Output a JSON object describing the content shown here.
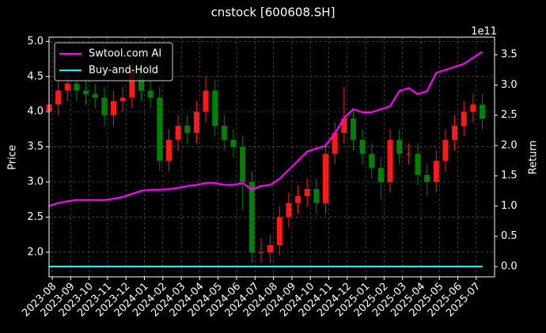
{
  "chart_data": {
    "type": "candlestick",
    "title": "cnstock [600608.SH]",
    "ylabel": "Price",
    "y2label": "Return",
    "y2_offset_label": "1e11",
    "categories": [
      null,
      null,
      null,
      null,
      null,
      null,
      null,
      null,
      null,
      null,
      null,
      null,
      null,
      null,
      null,
      null,
      null,
      null,
      null,
      null,
      null,
      null,
      null,
      null,
      null,
      null,
      null,
      null,
      null,
      null,
      null,
      null,
      null,
      null,
      null,
      null,
      null,
      null,
      null,
      null,
      null,
      null,
      null,
      null,
      null,
      null,
      null,
      null
    ],
    "open": [
      4.0,
      4.1,
      4.3,
      4.4,
      4.3,
      4.25,
      4.2,
      3.95,
      4.15,
      4.2,
      4.6,
      4.3,
      4.2,
      3.3,
      3.6,
      3.8,
      3.7,
      4.0,
      4.3,
      3.8,
      3.6,
      3.5,
      3.0,
      2.0,
      2.0,
      2.1,
      2.5,
      2.7,
      2.8,
      2.9,
      2.7,
      3.4,
      3.7,
      3.9,
      3.6,
      3.4,
      3.2,
      3.0,
      3.6,
      3.4,
      3.4,
      3.1,
      3.0,
      3.3,
      3.6,
      3.8,
      4.0,
      4.1
    ],
    "high": [
      4.25,
      4.45,
      4.55,
      4.55,
      4.45,
      4.4,
      4.35,
      4.3,
      4.35,
      4.75,
      4.75,
      4.45,
      4.35,
      3.75,
      3.95,
      3.95,
      4.15,
      4.5,
      4.45,
      3.95,
      3.75,
      3.65,
      3.15,
      2.2,
      2.25,
      2.65,
      2.85,
      2.95,
      3.05,
      3.05,
      3.55,
      3.85,
      4.35,
      4.05,
      3.75,
      3.55,
      3.35,
      3.75,
      3.75,
      3.55,
      3.55,
      3.25,
      3.45,
      3.75,
      3.95,
      4.15,
      4.25,
      4.25
    ],
    "low": [
      3.85,
      3.95,
      4.15,
      4.15,
      4.1,
      4.05,
      3.8,
      3.8,
      4.0,
      4.05,
      4.15,
      4.05,
      3.15,
      3.15,
      3.45,
      3.55,
      3.55,
      3.85,
      3.65,
      3.45,
      3.35,
      2.6,
      1.85,
      1.85,
      1.85,
      1.95,
      2.35,
      2.55,
      2.65,
      2.55,
      2.55,
      3.25,
      3.55,
      3.45,
      3.25,
      3.05,
      2.75,
      2.85,
      3.25,
      3.25,
      2.95,
      2.8,
      2.85,
      3.15,
      3.45,
      3.65,
      3.85,
      3.75
    ],
    "close": [
      4.1,
      4.3,
      4.4,
      4.3,
      4.25,
      4.2,
      3.95,
      4.15,
      4.2,
      4.6,
      4.3,
      4.2,
      3.3,
      3.6,
      3.8,
      3.7,
      4.0,
      4.3,
      3.8,
      3.6,
      3.5,
      3.0,
      2.0,
      2.0,
      2.1,
      2.5,
      2.7,
      2.8,
      2.9,
      2.7,
      3.4,
      3.7,
      3.9,
      3.6,
      3.4,
      3.2,
      3.0,
      3.6,
      3.4,
      3.4,
      3.1,
      3.0,
      3.3,
      3.6,
      3.8,
      4.0,
      4.1,
      3.9
    ],
    "up_color": "#ff1a1a",
    "down_color": "#008000",
    "series": [
      {
        "name": "Swtool.com AI",
        "color": "#ff00ff",
        "axis": "y2",
        "values": [
          1.0,
          1.05,
          1.08,
          1.1,
          1.1,
          1.1,
          1.1,
          1.12,
          1.15,
          1.2,
          1.25,
          1.27,
          1.27,
          1.28,
          1.3,
          1.33,
          1.35,
          1.38,
          1.38,
          1.35,
          1.35,
          1.38,
          1.27,
          1.33,
          1.35,
          1.45,
          1.6,
          1.75,
          1.9,
          1.95,
          2.0,
          2.2,
          2.45,
          2.6,
          2.55,
          2.55,
          2.6,
          2.65,
          2.9,
          2.95,
          2.85,
          2.9,
          3.2,
          3.25,
          3.3,
          3.35,
          3.45,
          3.55
        ]
      },
      {
        "name": "Buy-and-Hold",
        "color": "#33e6e6",
        "axis": "y2",
        "values": [
          0,
          0,
          0,
          0,
          0,
          0,
          0,
          0,
          0,
          0,
          0,
          0,
          0,
          0,
          0,
          0,
          0,
          0,
          0,
          0,
          0,
          0,
          0,
          0,
          0,
          0,
          0,
          0,
          0,
          0,
          0,
          0,
          0,
          0,
          0,
          0,
          0,
          0,
          0,
          0,
          0,
          0,
          0,
          0,
          0,
          0,
          0,
          0
        ]
      }
    ],
    "xticks": [
      "2023-08",
      "2023-09",
      "2023-10",
      "2023-11",
      "2023-12",
      "2024-01",
      "2024-02",
      "2024-03",
      "2024-04",
      "2024-05",
      "2024-06",
      "2024-07",
      "2024-08",
      "2024-09",
      "2024-10",
      "2024-11",
      "2024-12",
      "2025-01",
      "2025-02",
      "2025-03",
      "2025-04",
      "2025-05",
      "2025-06",
      "2025-07"
    ],
    "ylim": [
      1.65,
      5.06
    ],
    "yticks": [
      {
        "value": 2,
        "label": "2.0"
      },
      2.5,
      {
        "value": 3,
        "label": "3.0"
      },
      3.5,
      {
        "value": 4,
        "label": "4.0"
      },
      4.5,
      {
        "value": 5,
        "label": "5.0"
      }
    ],
    "y2lim": [
      -0.17,
      3.79
    ],
    "y2ticks": [
      {
        "value": 0,
        "label": "0.0"
      },
      0.5,
      {
        "value": 1,
        "label": "1.0"
      },
      1.5,
      {
        "value": 2,
        "label": "2.0"
      },
      2.5,
      {
        "value": 3,
        "label": "3.0"
      },
      3.5
    ],
    "grid": true,
    "legend": "upper left"
  }
}
